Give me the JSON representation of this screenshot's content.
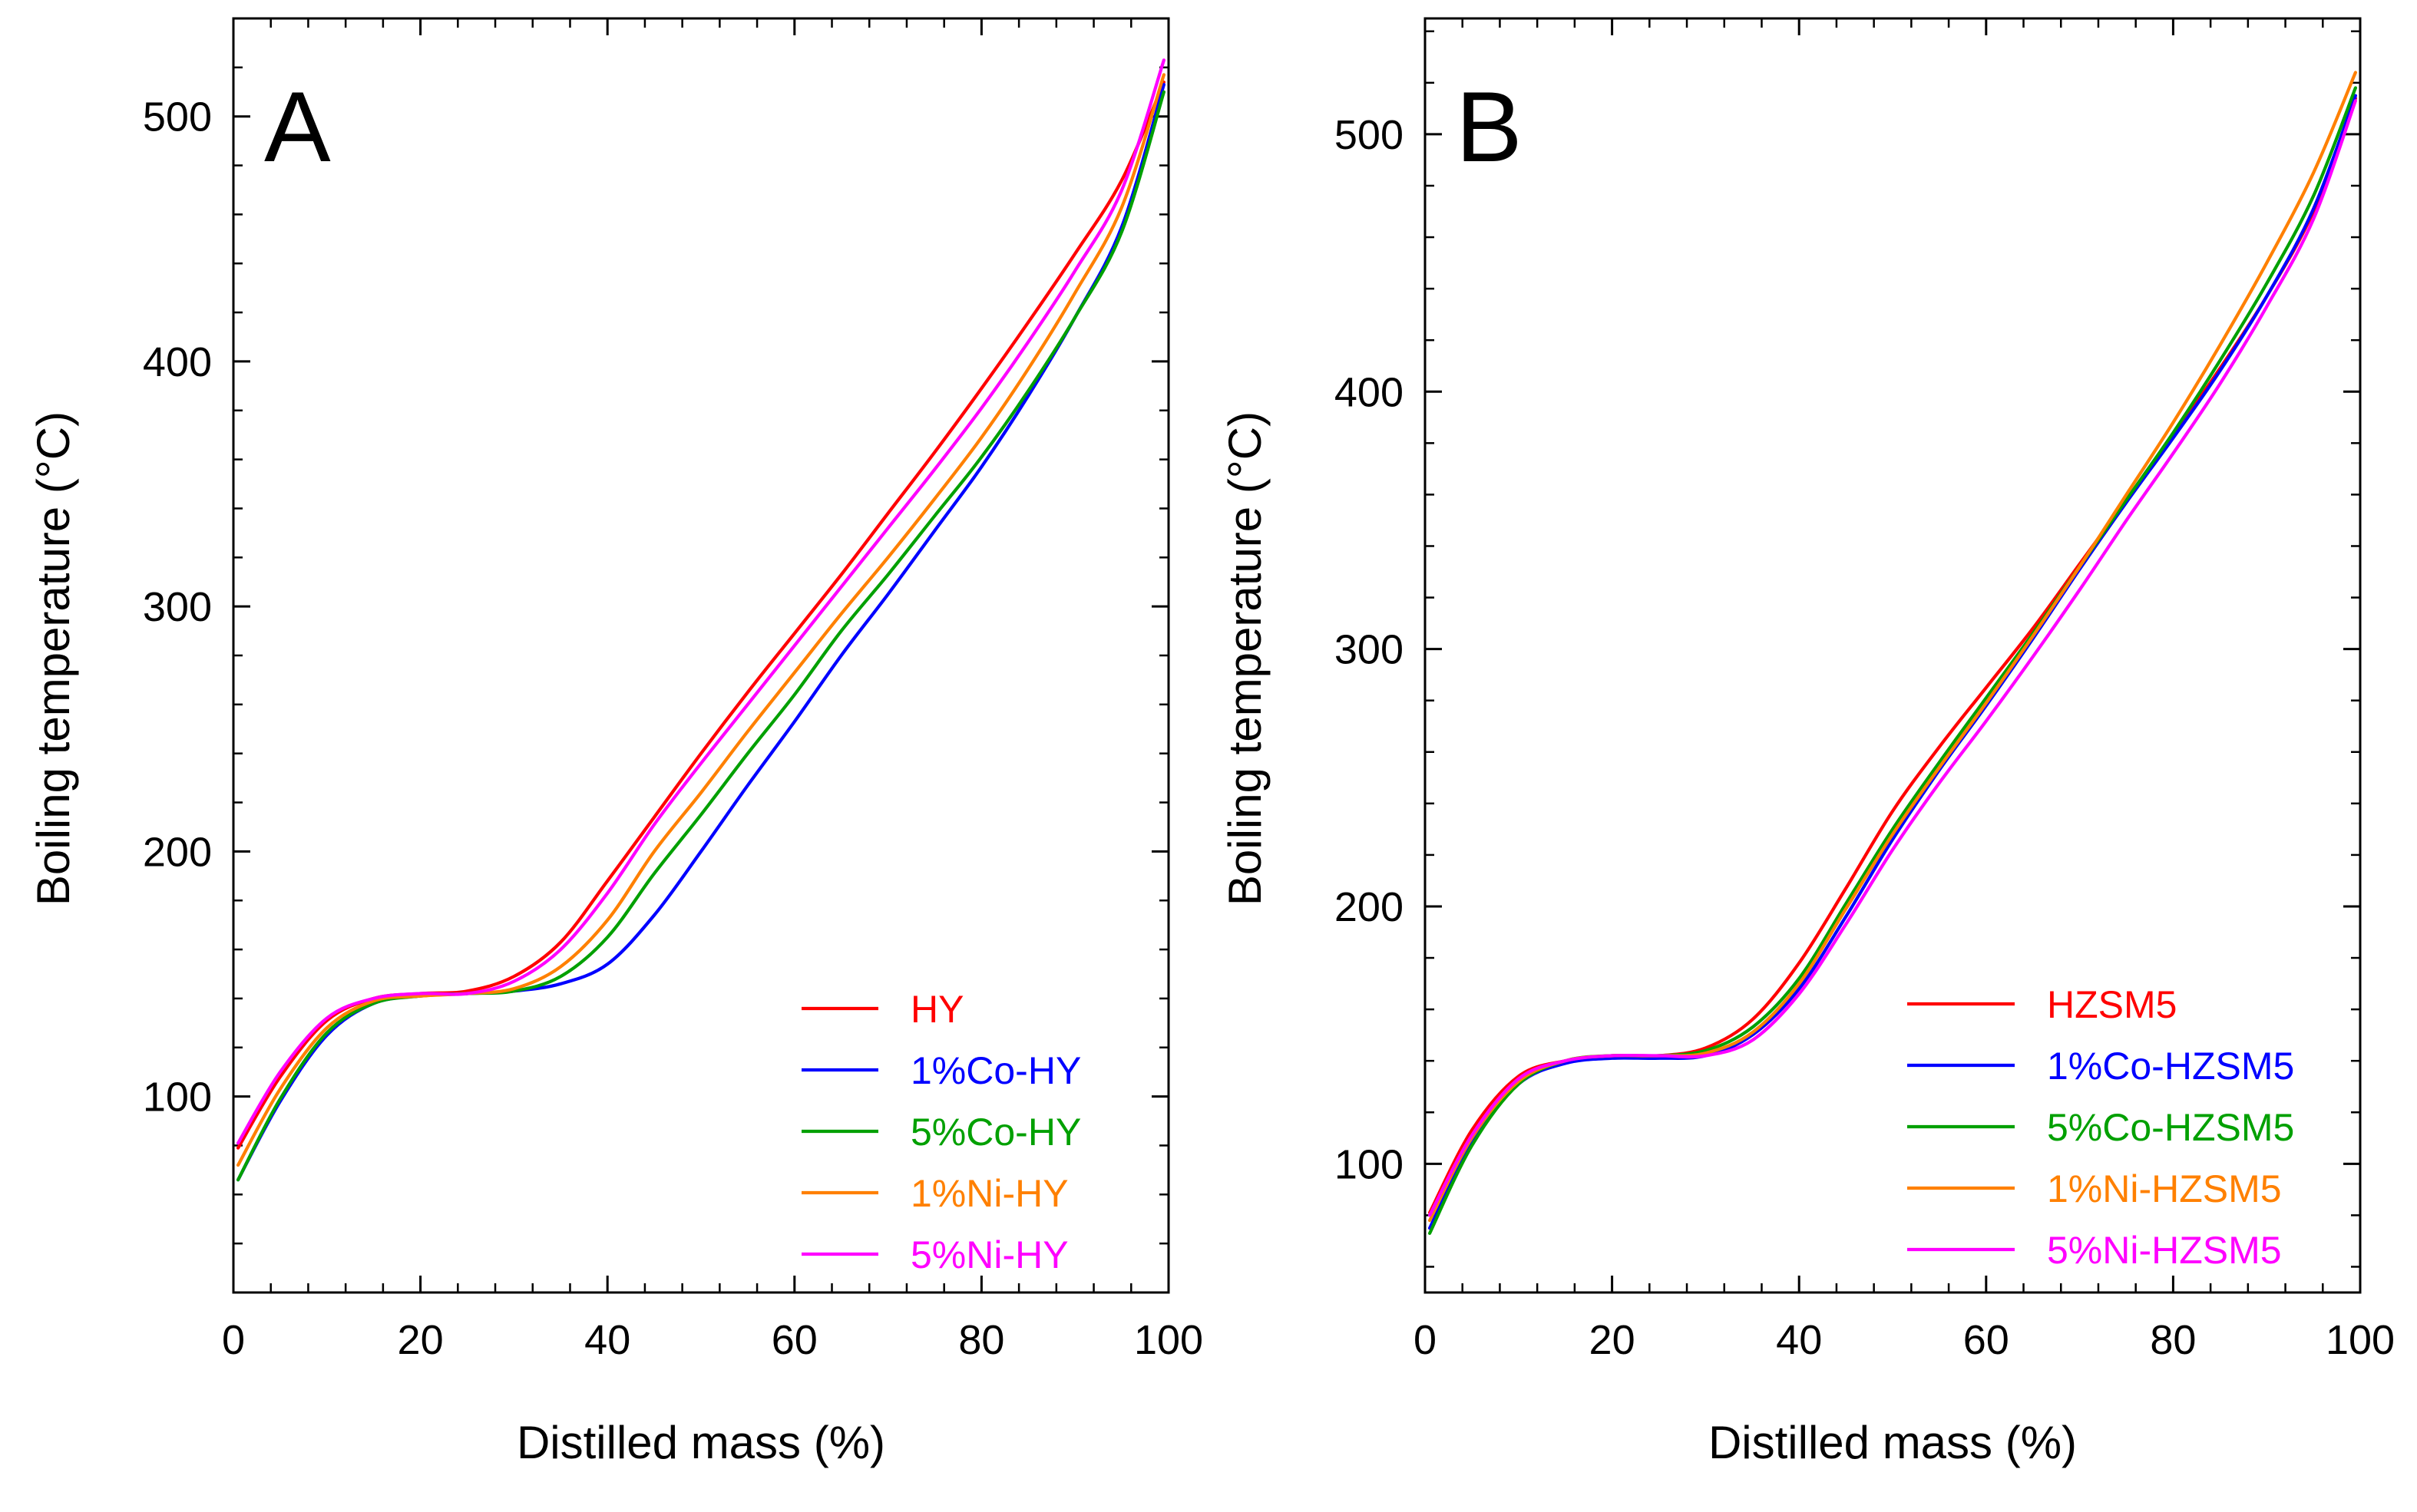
{
  "chart_data": [
    {
      "type": "line",
      "panel_label": "A",
      "title": "",
      "xlabel": "Distilled mass (%)",
      "ylabel": "Boiling temperature (°C)",
      "xlim": [
        0,
        100
      ],
      "ylim": [
        20,
        540
      ],
      "xticks": [
        0,
        20,
        40,
        60,
        80,
        100
      ],
      "yticks": [
        100,
        200,
        300,
        400,
        500
      ],
      "grid": false,
      "legend_position": "bottom-right",
      "series": [
        {
          "name": "HY",
          "color": "#ff0000",
          "x": [
            0.5,
            5,
            10,
            15,
            20,
            25,
            30,
            35,
            40,
            45,
            50,
            55,
            60,
            65,
            70,
            75,
            80,
            85,
            90,
            95,
            99.5
          ],
          "y": [
            79,
            108,
            131,
            140,
            142,
            143,
            149,
            163,
            188,
            214,
            240,
            265,
            289,
            313,
            338,
            363,
            389,
            416,
            444,
            474,
            514
          ]
        },
        {
          "name": "1%Co-HY",
          "color": "#0000ff",
          "x": [
            0.5,
            5,
            10,
            15,
            20,
            25,
            30,
            35,
            40,
            45,
            50,
            55,
            60,
            65,
            70,
            75,
            80,
            85,
            90,
            95,
            99.5
          ],
          "y": [
            66,
            98,
            125,
            138,
            141,
            142,
            143,
            146,
            154,
            174,
            200,
            227,
            253,
            280,
            305,
            331,
            357,
            386,
            418,
            455,
            513
          ]
        },
        {
          "name": "5%Co-HY",
          "color": "#00a000",
          "x": [
            0.5,
            5,
            10,
            15,
            20,
            25,
            30,
            35,
            40,
            45,
            50,
            55,
            60,
            65,
            70,
            75,
            80,
            85,
            90,
            95,
            99.5
          ],
          "y": [
            66,
            99,
            126,
            138,
            141,
            142,
            143,
            149,
            165,
            191,
            215,
            240,
            264,
            290,
            313,
            337,
            361,
            388,
            418,
            453,
            510
          ]
        },
        {
          "name": "1%Ni-HY",
          "color": "#ff8000",
          "x": [
            0.5,
            5,
            10,
            15,
            20,
            25,
            30,
            35,
            40,
            45,
            50,
            55,
            60,
            65,
            70,
            75,
            80,
            85,
            90,
            95,
            99.5
          ],
          "y": [
            72,
            103,
            128,
            139,
            141,
            142,
            144,
            153,
            172,
            200,
            224,
            249,
            273,
            297,
            320,
            344,
            369,
            397,
            428,
            463,
            517
          ]
        },
        {
          "name": "5%Ni-HY",
          "color": "#ff00ff",
          "x": [
            0.5,
            5,
            10,
            15,
            20,
            25,
            30,
            35,
            40,
            45,
            50,
            55,
            60,
            65,
            70,
            75,
            80,
            85,
            90,
            95,
            99.5
          ],
          "y": [
            81,
            110,
            132,
            140,
            142,
            142,
            147,
            160,
            183,
            211,
            236,
            260,
            284,
            308,
            332,
            356,
            381,
            408,
            437,
            470,
            523
          ]
        }
      ]
    },
    {
      "type": "line",
      "panel_label": "B",
      "title": "",
      "xlabel": "Distilled mass (%)",
      "ylabel": "Boiling temperature (°C)",
      "xlim": [
        0,
        100
      ],
      "ylim": [
        50,
        545
      ],
      "xticks": [
        0,
        20,
        40,
        60,
        80,
        100
      ],
      "yticks": [
        100,
        200,
        300,
        400,
        500
      ],
      "grid": false,
      "legend_position": "bottom-right",
      "series": [
        {
          "name": "HZSM5",
          "color": "#ff0000",
          "x": [
            0.5,
            5,
            10,
            15,
            20,
            25,
            30,
            35,
            40,
            45,
            50,
            55,
            60,
            65,
            70,
            75,
            80,
            85,
            90,
            95,
            99.5
          ],
          "y": [
            81,
            113,
            134,
            140,
            142,
            142,
            145,
            156,
            178,
            207,
            237,
            262,
            285,
            308,
            333,
            358,
            383,
            409,
            437,
            470,
            514
          ]
        },
        {
          "name": "1%Co-HZSM5",
          "color": "#0000ff",
          "x": [
            0.5,
            5,
            10,
            15,
            20,
            25,
            30,
            35,
            40,
            45,
            50,
            55,
            60,
            65,
            70,
            75,
            80,
            85,
            90,
            95,
            99.5
          ],
          "y": [
            75,
            108,
            131,
            139,
            141,
            141,
            142,
            150,
            168,
            196,
            226,
            253,
            278,
            304,
            331,
            357,
            382,
            408,
            437,
            471,
            515
          ]
        },
        {
          "name": "5%Co-HZSM5",
          "color": "#00a000",
          "x": [
            0.5,
            5,
            10,
            15,
            20,
            25,
            30,
            35,
            40,
            45,
            50,
            55,
            60,
            65,
            70,
            75,
            80,
            85,
            90,
            95,
            99.5
          ],
          "y": [
            73,
            107,
            131,
            140,
            142,
            142,
            144,
            153,
            172,
            201,
            230,
            256,
            281,
            306,
            332,
            358,
            384,
            412,
            442,
            476,
            518
          ]
        },
        {
          "name": "1%Ni-HZSM5",
          "color": "#ff8000",
          "x": [
            0.5,
            5,
            10,
            15,
            20,
            25,
            30,
            35,
            40,
            45,
            50,
            55,
            60,
            65,
            70,
            75,
            80,
            85,
            90,
            95,
            99.5
          ],
          "y": [
            78,
            110,
            132,
            140,
            142,
            142,
            143,
            151,
            170,
            199,
            228,
            254,
            279,
            305,
            332,
            360,
            388,
            418,
            450,
            485,
            524
          ]
        },
        {
          "name": "5%Ni-HZSM5",
          "color": "#ff00ff",
          "x": [
            0.5,
            5,
            10,
            15,
            20,
            25,
            30,
            35,
            40,
            45,
            50,
            55,
            60,
            65,
            70,
            75,
            80,
            85,
            90,
            95,
            99.5
          ],
          "y": [
            80,
            111,
            133,
            140,
            142,
            142,
            142,
            148,
            166,
            193,
            222,
            248,
            272,
            297,
            323,
            350,
            376,
            403,
            433,
            467,
            513
          ]
        }
      ]
    }
  ]
}
